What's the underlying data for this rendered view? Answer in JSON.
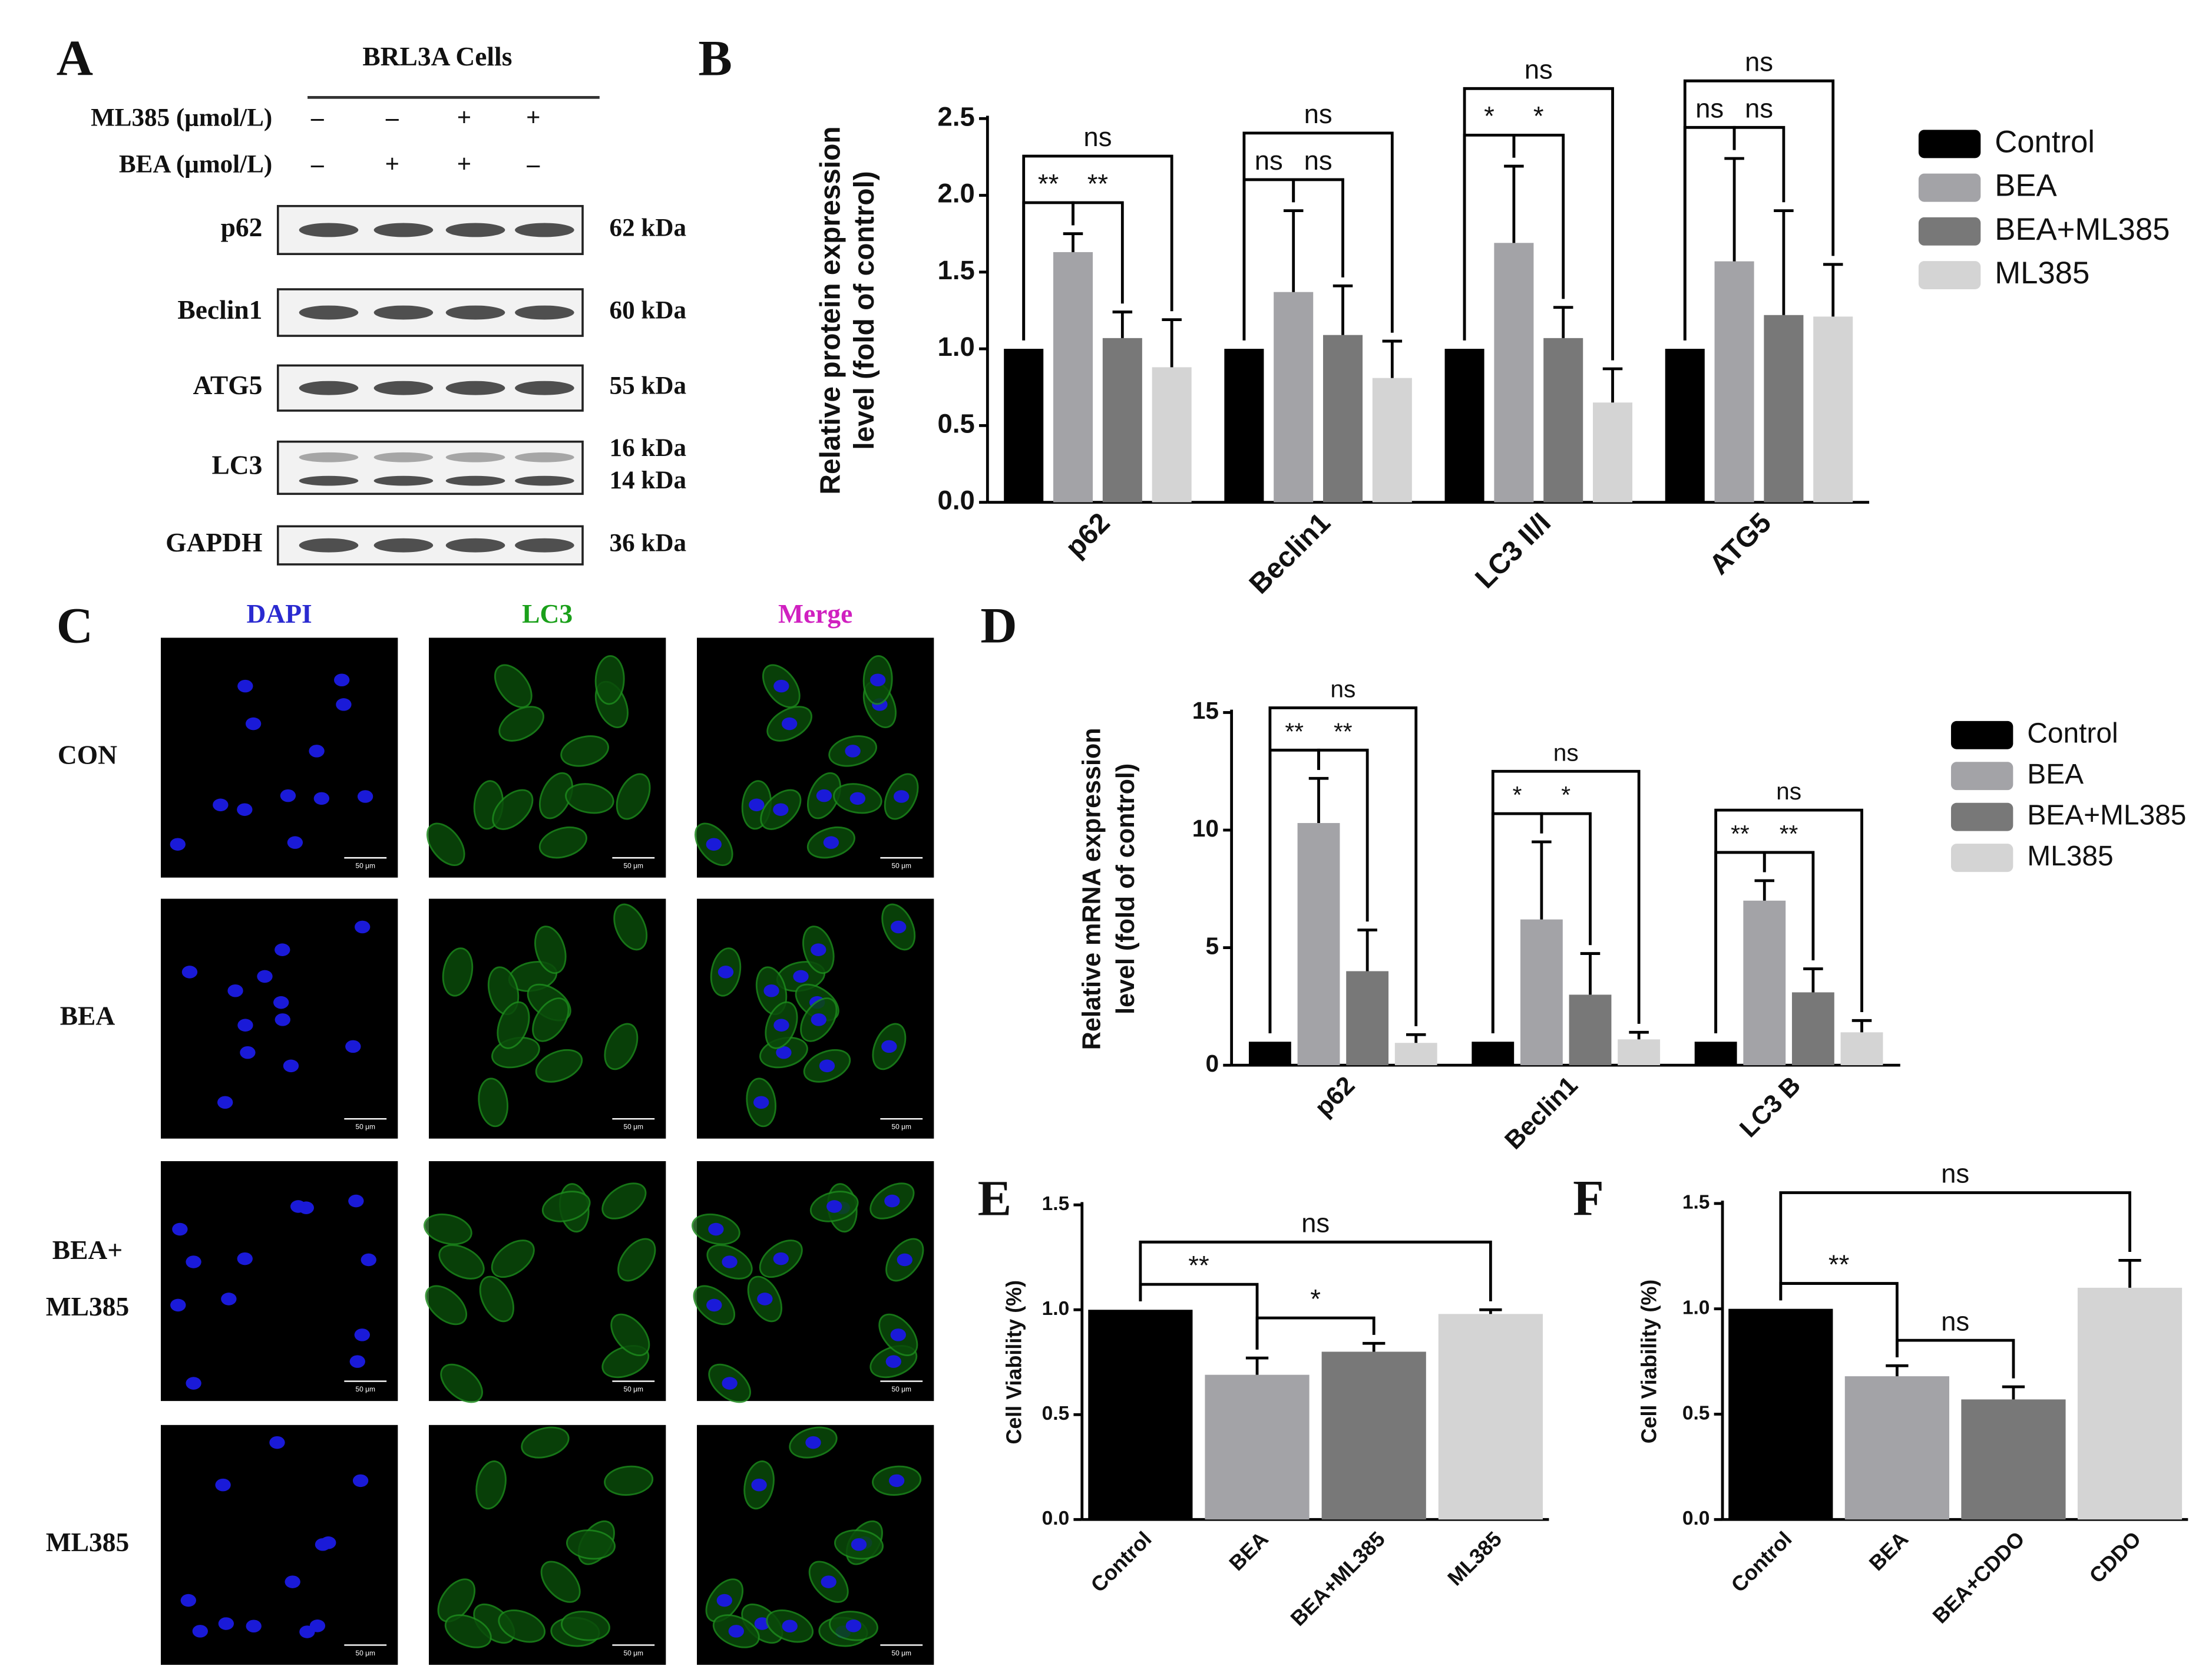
{
  "figure": {
    "panel_a": {
      "panel": "A",
      "title": "BRL3A Cells",
      "treatments": [
        {
          "label": "ML385 (μmol/L)",
          "signs": [
            "–",
            "–",
            "+",
            "+"
          ]
        },
        {
          "label": "BEA (μmol/L)",
          "signs": [
            "–",
            "+",
            "+",
            "–"
          ]
        }
      ],
      "bands": [
        {
          "protein": "p62",
          "kda": [
            "62 kDa"
          ]
        },
        {
          "protein": "Beclin1",
          "kda": [
            "60 kDa"
          ]
        },
        {
          "protein": "ATG5",
          "kda": [
            "55 kDa"
          ]
        },
        {
          "protein": "LC3",
          "kda": [
            "16 kDa",
            "14 kDa"
          ]
        },
        {
          "protein": "GAPDH",
          "kda": [
            "36 kDa"
          ]
        }
      ]
    },
    "panel_c": {
      "panel": "C",
      "columns": [
        {
          "label": "DAPI",
          "color": "#2a2ad0"
        },
        {
          "label": "LC3",
          "color": "#1aa01a"
        },
        {
          "label": "Merge",
          "color": "#d020c0"
        }
      ],
      "rows": [
        [
          "CON"
        ],
        [
          "BEA"
        ],
        [
          "BEA+",
          "ML385"
        ],
        [
          "ML385"
        ]
      ],
      "scale_bar": "50 μm"
    }
  },
  "chart_data": [
    {
      "type": "grouped_bar",
      "panel": "B",
      "y_label": [
        "Relative protein expression",
        "level (fold of control)"
      ],
      "categories": [
        "p62",
        "Beclin1",
        "LC3 II/I",
        "ATG5"
      ],
      "series": [
        {
          "name": "Control",
          "color": "#000000",
          "values": [
            1.0,
            1.0,
            1.0,
            1.0
          ],
          "errors": [
            null,
            null,
            null,
            null
          ]
        },
        {
          "name": "BEA",
          "color": "#a3a3a7",
          "values": [
            1.63,
            1.37,
            1.69,
            1.57
          ],
          "errors": [
            0.12,
            0.53,
            0.5,
            0.67
          ]
        },
        {
          "name": "BEA+ML385",
          "color": "#787878",
          "values": [
            1.07,
            1.09,
            1.07,
            1.22
          ],
          "errors": [
            0.17,
            0.32,
            0.2,
            0.68
          ]
        },
        {
          "name": "ML385",
          "color": "#d4d4d4",
          "values": [
            0.88,
            0.81,
            0.65,
            1.21
          ],
          "errors": [
            0.31,
            0.24,
            0.22,
            0.34
          ]
        }
      ],
      "ylim": [
        0,
        2.5
      ],
      "yticks": [
        {
          "value": 0,
          "label": "0.0"
        },
        0.5,
        {
          "value": 1,
          "label": "1.0"
        },
        1.5,
        {
          "value": 2,
          "label": "2.0"
        },
        2.5
      ],
      "legend": "right",
      "significance": [
        {
          "category": "p62",
          "pair": [
            "Control",
            "BEA"
          ],
          "label": "**"
        },
        {
          "category": "p62",
          "pair": [
            "BEA",
            "BEA+ML385"
          ],
          "label": "**"
        },
        {
          "category": "p62",
          "pair": [
            "Control",
            "ML385"
          ],
          "label": "ns"
        },
        {
          "category": "Beclin1",
          "pair": [
            "Control",
            "BEA"
          ],
          "label": "ns"
        },
        {
          "category": "Beclin1",
          "pair": [
            "BEA",
            "BEA+ML385"
          ],
          "label": "ns"
        },
        {
          "category": "Beclin1",
          "pair": [
            "Control",
            "ML385"
          ],
          "label": "ns"
        },
        {
          "category": "LC3 II/I",
          "pair": [
            "Control",
            "BEA"
          ],
          "label": "*"
        },
        {
          "category": "LC3 II/I",
          "pair": [
            "BEA",
            "BEA+ML385"
          ],
          "label": "*"
        },
        {
          "category": "LC3 II/I",
          "pair": [
            "Control",
            "ML385"
          ],
          "label": "ns"
        },
        {
          "category": "ATG5",
          "pair": [
            "Control",
            "BEA"
          ],
          "label": "ns"
        },
        {
          "category": "ATG5",
          "pair": [
            "BEA",
            "BEA+ML385"
          ],
          "label": "ns"
        },
        {
          "category": "ATG5",
          "pair": [
            "Control",
            "ML385"
          ],
          "label": "ns"
        }
      ]
    },
    {
      "type": "grouped_bar",
      "panel": "D",
      "y_label": [
        "Relative mRNA expression",
        "level (fold of control)"
      ],
      "categories": [
        "p62",
        "Beclin1",
        "LC3 B"
      ],
      "series": [
        {
          "name": "Control",
          "color": "#000000",
          "values": [
            1.0,
            1.0,
            1.0
          ],
          "errors": [
            null,
            null,
            null
          ]
        },
        {
          "name": "BEA",
          "color": "#a3a3a7",
          "values": [
            10.3,
            6.2,
            7.0
          ],
          "errors": [
            1.9,
            3.3,
            0.85
          ]
        },
        {
          "name": "BEA+ML385",
          "color": "#787878",
          "values": [
            4.0,
            3.0,
            3.1
          ],
          "errors": [
            1.75,
            1.75,
            1.0
          ]
        },
        {
          "name": "ML385",
          "color": "#d4d4d4",
          "values": [
            0.95,
            1.1,
            1.4
          ],
          "errors": [
            0.35,
            0.3,
            0.5
          ]
        }
      ],
      "ylim": [
        0,
        15
      ],
      "yticks": [
        0,
        5,
        10,
        15
      ],
      "legend": "right",
      "significance": [
        {
          "category": "p62",
          "pair": [
            "Control",
            "BEA"
          ],
          "label": "**"
        },
        {
          "category": "p62",
          "pair": [
            "BEA",
            "BEA+ML385"
          ],
          "label": "**"
        },
        {
          "category": "p62",
          "pair": [
            "Control",
            "ML385"
          ],
          "label": "ns"
        },
        {
          "category": "Beclin1",
          "pair": [
            "Control",
            "BEA"
          ],
          "label": "*"
        },
        {
          "category": "Beclin1",
          "pair": [
            "BEA",
            "BEA+ML385"
          ],
          "label": "*"
        },
        {
          "category": "Beclin1",
          "pair": [
            "Control",
            "ML385"
          ],
          "label": "ns"
        },
        {
          "category": "LC3 B",
          "pair": [
            "Control",
            "BEA"
          ],
          "label": "**"
        },
        {
          "category": "LC3 B",
          "pair": [
            "BEA",
            "BEA+ML385"
          ],
          "label": "**"
        },
        {
          "category": "LC3 B",
          "pair": [
            "Control",
            "ML385"
          ],
          "label": "ns"
        }
      ]
    },
    {
      "type": "bar",
      "panel": "E",
      "y_label": [
        "Cell Viability (%)"
      ],
      "categories": [
        "Control",
        "BEA",
        "BEA+ML385",
        "ML385"
      ],
      "values": [
        1.0,
        0.69,
        0.8,
        0.98
      ],
      "errors": [
        null,
        0.08,
        0.04,
        0.02
      ],
      "colors": [
        "#000000",
        "#a3a3a7",
        "#787878",
        "#d4d4d4"
      ],
      "ylim": [
        0,
        1.5
      ],
      "yticks": [
        {
          "value": 0,
          "label": "0.0"
        },
        0.5,
        {
          "value": 1,
          "label": "1.0"
        },
        1.5
      ],
      "significance": [
        {
          "pair": [
            "Control",
            "BEA"
          ],
          "label": "**"
        },
        {
          "pair": [
            "BEA",
            "BEA+ML385"
          ],
          "label": "*"
        },
        {
          "pair": [
            "Control",
            "ML385"
          ],
          "label": "ns"
        }
      ]
    },
    {
      "type": "bar",
      "panel": "F",
      "y_label": [
        "Cell Viability (%)"
      ],
      "categories": [
        "Control",
        "BEA",
        "BEA+CDDO",
        "CDDO"
      ],
      "values": [
        1.0,
        0.68,
        0.57,
        1.1
      ],
      "errors": [
        null,
        0.05,
        0.06,
        0.13
      ],
      "colors": [
        "#000000",
        "#a3a3a7",
        "#787878",
        "#d4d4d4"
      ],
      "ylim": [
        0,
        1.5
      ],
      "yticks": [
        {
          "value": 0,
          "label": "0.0"
        },
        0.5,
        {
          "value": 1,
          "label": "1.0"
        },
        1.5
      ],
      "significance": [
        {
          "pair": [
            "Control",
            "BEA"
          ],
          "label": "**"
        },
        {
          "pair": [
            "BEA",
            "BEA+CDDO"
          ],
          "label": "ns"
        },
        {
          "pair": [
            "Control",
            "CDDO"
          ],
          "label": "ns"
        }
      ]
    }
  ]
}
